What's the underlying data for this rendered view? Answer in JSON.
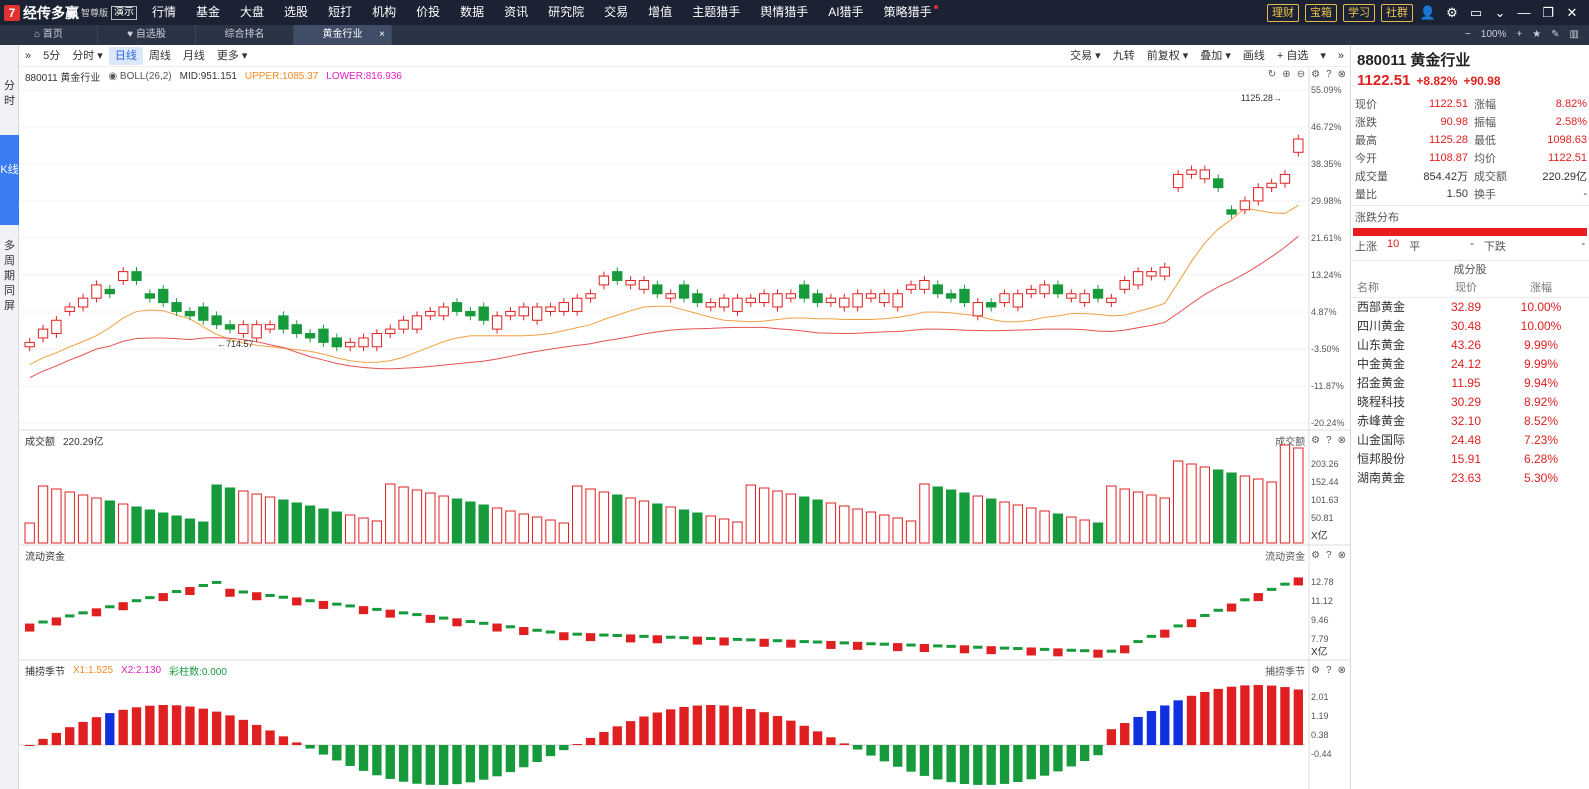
{
  "app": {
    "logo_mark": "7",
    "name": "经传多赢",
    "edition": "智尊版",
    "demo": "演示"
  },
  "menu": [
    "行情",
    "基金",
    "大盘",
    "选股",
    "短打",
    "机构",
    "价投",
    "数据",
    "资讯",
    "研究院",
    "交易",
    "增值",
    "主题猎手",
    "舆情猎手",
    "AI猎手",
    "策略猎手"
  ],
  "top_buttons": [
    "理财",
    "宝箱",
    "学习",
    "社群"
  ],
  "tabs": {
    "items": [
      "首页",
      "自选股",
      "综合排名",
      "黄金行业"
    ],
    "active": 3,
    "zoom": "100%"
  },
  "left_tabs": [
    "分时",
    "K线",
    "多周期同屏"
  ],
  "toolbar": {
    "left": [
      "5分",
      "分时 ▾",
      "日线",
      "周线",
      "月线",
      "更多 ▾"
    ],
    "active": 2,
    "right": [
      "交易 ▾",
      "九转",
      "前复权 ▾",
      "叠加 ▾",
      "画线",
      "+ 自选",
      "▾"
    ]
  },
  "kline": {
    "label": "880011 黄金行业",
    "indicator": "BOLL(26,2)",
    "mid": "MID:951.151",
    "upper": "UPPER:1085.37",
    "lower": "LOWER:816.936",
    "pct_ticks": [
      "55.09%",
      "46.72%",
      "38.35%",
      "29.98%",
      "21.61%",
      "13.24%",
      "4.87%",
      "-3.50%",
      "-11.87%",
      "-20.24%"
    ],
    "high_label": "1125.28",
    "low_label": "714.57"
  },
  "volume": {
    "label": "成交额",
    "value": "220.29亿",
    "right_label": "成交额",
    "ticks": [
      "203.26",
      "152.44",
      "101.63",
      "50.81"
    ],
    "unit": "X亿"
  },
  "flow": {
    "label": "流动资金",
    "right_label": "流动资金",
    "ticks": [
      "12.78",
      "11.12",
      "9.46",
      "7.79"
    ],
    "unit": "X亿"
  },
  "cycle": {
    "label": "捕捞季节",
    "x1": "X1:1.525",
    "x2": "X2:2.130",
    "bars": "彩柱数:0.000",
    "right_label": "捕捞季节",
    "ticks": [
      "2.01",
      "1.19",
      "0.38",
      "-0.44"
    ]
  },
  "colors": {
    "up": "#e02020",
    "down": "#179a3b",
    "ma1": "#f0a040",
    "ma2": "#e85050",
    "accent": "#3a7cf2"
  },
  "right_panel": {
    "title": "880011 黄金行业",
    "price": "1122.51",
    "change_pct": "+8.82%",
    "change": "+90.98",
    "quote": [
      [
        "现价",
        "1122.51",
        "涨幅",
        "8.82%"
      ],
      [
        "涨跌",
        "90.98",
        "振幅",
        "2.58%"
      ],
      [
        "最高",
        "1125.28",
        "最低",
        "1098.63"
      ],
      [
        "今开",
        "1108.87",
        "均价",
        "1122.51"
      ],
      [
        "成交量",
        "854.42万",
        "成交额",
        "220.29亿"
      ],
      [
        "量比",
        "1.50",
        "换手",
        "-"
      ]
    ],
    "dist": {
      "title": "涨跌分布",
      "up_label": "上涨",
      "up_count": "10",
      "flat_label": "平",
      "flat_count": "-",
      "down_label": "下跌",
      "down_count": "-"
    },
    "components": {
      "title": "成分股",
      "headers": [
        "名称",
        "现价",
        "涨幅"
      ],
      "rows": [
        [
          "西部黄金",
          "32.89",
          "10.00%"
        ],
        [
          "四川黄金",
          "30.48",
          "10.00%"
        ],
        [
          "山东黄金",
          "43.26",
          "9.99%"
        ],
        [
          "中金黄金",
          "24.12",
          "9.99%"
        ],
        [
          "招金黄金",
          "11.95",
          "9.94%"
        ],
        [
          "晓程科技",
          "30.29",
          "8.92%"
        ],
        [
          "赤峰黄金",
          "32.10",
          "8.52%"
        ],
        [
          "山金国际",
          "24.48",
          "7.23%"
        ],
        [
          "恒邦股份",
          "15.91",
          "6.28%"
        ],
        [
          "湖南黄金",
          "23.63",
          "5.30%"
        ]
      ]
    }
  }
}
